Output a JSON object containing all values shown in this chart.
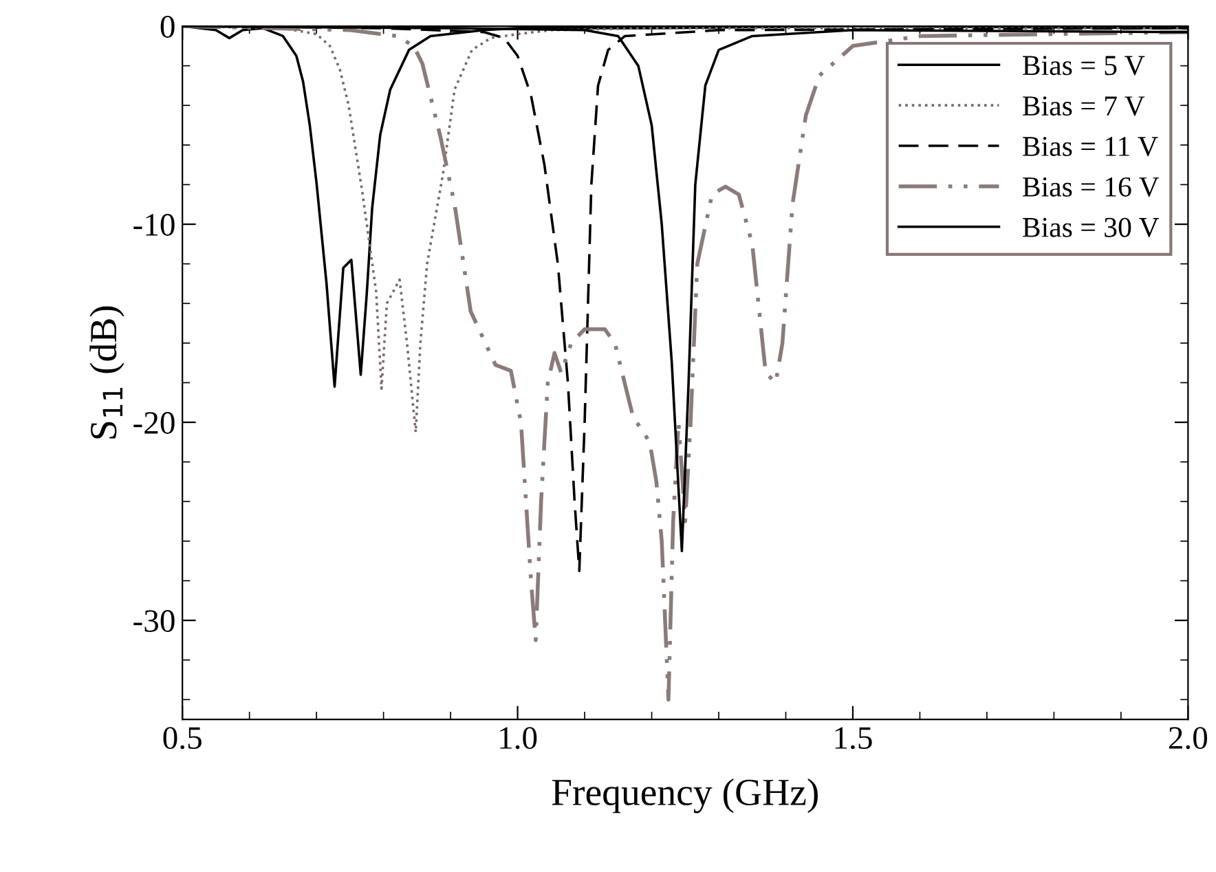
{
  "chart_data": {
    "type": "line",
    "xlabel": "Frequency (GHz)",
    "ylabel": "S$_{11}$ (dB)",
    "xlim": [
      0.5,
      2.0
    ],
    "xticks": [
      {
        "value": 0.5,
        "label": "0.5"
      },
      {
        "value": 1.0,
        "label": "1.0"
      },
      {
        "value": 1.5,
        "label": "1.5"
      },
      {
        "value": 2.0,
        "label": "2.0"
      }
    ],
    "ylim": [
      -35,
      0
    ],
    "yticks": [
      -30,
      -20,
      -10,
      0
    ],
    "grid": false,
    "legend": "top right",
    "marker": "none",
    "series": [
      {
        "name": "Bias = 5 V",
        "color": "#000000",
        "line_style": "solid",
        "x": [
          0.5,
          0.55,
          0.57,
          0.59,
          0.62,
          0.65,
          0.67,
          0.68,
          0.69,
          0.7,
          0.715,
          0.727,
          0.74,
          0.752,
          0.766,
          0.775,
          0.783,
          0.795,
          0.81,
          0.838,
          0.87,
          0.95,
          1.0,
          1.2,
          1.5,
          2.0
        ],
        "values": [
          0,
          -0.2,
          -0.6,
          -0.2,
          -0.1,
          -0.5,
          -1.5,
          -2.8,
          -5,
          -7.9,
          -13,
          -18.2,
          -12.2,
          -11.8,
          -17.6,
          -13.5,
          -9.2,
          -5.5,
          -3.2,
          -1.2,
          -0.5,
          -0.2,
          -0.1,
          -0.1,
          0,
          -0.1
        ]
      },
      {
        "name": "Bias = 7 V",
        "color": "#7a6a6a",
        "line_style": "dotted",
        "x": [
          0.5,
          0.65,
          0.7,
          0.72,
          0.735,
          0.748,
          0.768,
          0.789,
          0.797,
          0.805,
          0.824,
          0.835,
          0.848,
          0.855,
          0.865,
          0.889,
          0.906,
          0.932,
          0.96,
          1.0,
          1.05,
          1.2,
          2.0
        ],
        "values": [
          0,
          -0.1,
          -0.4,
          -1,
          -2.2,
          -4,
          -8.3,
          -13.4,
          -18.3,
          -14,
          -12.8,
          -16,
          -20.5,
          -16,
          -12,
          -7.4,
          -3.2,
          -1.2,
          -0.6,
          -0.4,
          -0.2,
          -0.1,
          -0.1
        ]
      },
      {
        "name": "Bias = 11 V",
        "color": "#000000",
        "line_style": "dashed",
        "x": [
          0.5,
          0.8,
          0.95,
          0.98,
          1.0,
          1.02,
          1.04,
          1.06,
          1.075,
          1.085,
          1.092,
          1.1,
          1.11,
          1.12,
          1.135,
          1.16,
          1.3,
          2.0
        ],
        "values": [
          0,
          -0.1,
          -0.3,
          -0.6,
          -1.5,
          -3.5,
          -7,
          -12,
          -18,
          -24,
          -27.5,
          -20,
          -8,
          -3,
          -1.2,
          -0.5,
          -0.2,
          -0.1
        ]
      },
      {
        "name": "Bias = 16 V",
        "color": "#8b7b7b",
        "line_style": "dashdot",
        "x": [
          0.5,
          0.75,
          0.82,
          0.845,
          0.858,
          0.885,
          0.906,
          0.93,
          0.967,
          0.99,
          1.005,
          1.02,
          1.027,
          1.035,
          1.045,
          1.055,
          1.065,
          1.08,
          1.1,
          1.13,
          1.145,
          1.172,
          1.197,
          1.207,
          1.215,
          1.225,
          1.232,
          1.24,
          1.25,
          1.258,
          1.268,
          1.29,
          1.31,
          1.33,
          1.35,
          1.37,
          1.385,
          1.395,
          1.41,
          1.43,
          1.45,
          1.5,
          1.6,
          2.0
        ],
        "values": [
          0,
          -0.2,
          -0.5,
          -1,
          -1.9,
          -5.6,
          -9,
          -14.4,
          -17.1,
          -17.4,
          -20,
          -28,
          -31,
          -24,
          -18,
          -16.5,
          -17.5,
          -16,
          -15.3,
          -15.3,
          -16,
          -19.7,
          -21,
          -23,
          -26,
          -34,
          -25,
          -20,
          -25,
          -20,
          -12,
          -8.5,
          -8.1,
          -8.5,
          -11,
          -17.5,
          -18,
          -16,
          -9,
          -4.5,
          -2.5,
          -1,
          -0.5,
          -0.3
        ]
      },
      {
        "name": "Bias = 30 V",
        "color": "#000000",
        "line_style": "solid",
        "x": [
          0.5,
          0.9,
          1.1,
          1.15,
          1.18,
          1.2,
          1.215,
          1.23,
          1.245,
          1.255,
          1.265,
          1.28,
          1.3,
          1.35,
          1.5,
          2.0
        ],
        "values": [
          0,
          -0.1,
          -0.2,
          -0.5,
          -2,
          -5,
          -10,
          -17,
          -26.5,
          -18,
          -8,
          -3,
          -1.2,
          -0.5,
          -0.2,
          -0.3
        ]
      }
    ]
  }
}
